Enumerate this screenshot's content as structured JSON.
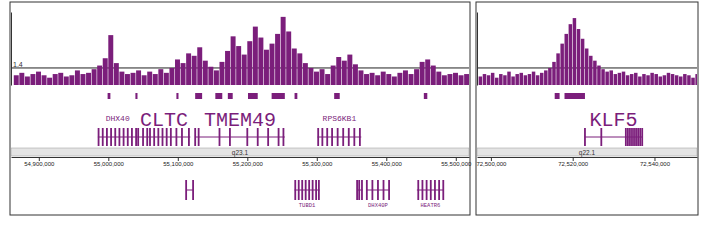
{
  "chart_data": [
    {
      "type": "bar",
      "color": "#7b1e7b",
      "band": "q23.1",
      "grid": true,
      "xlim": [
        54860000,
        55519000
      ],
      "xticks": [
        {
          "value": 54900000,
          "label": "54,900,000"
        },
        {
          "value": 55000000,
          "label": "55,000,000"
        },
        {
          "value": 55100000,
          "label": "55,100,000"
        },
        {
          "value": 55200000,
          "label": "55,200,000"
        },
        {
          "value": 55300000,
          "label": "55,300,000"
        },
        {
          "value": 55400000,
          "label": "55,400,000"
        },
        {
          "value": 55500000,
          "label": "55,500,000"
        }
      ],
      "ylim": [
        0,
        6
      ],
      "yticks": [
        {
          "value": 1.4,
          "label": "1.4"
        }
      ],
      "x": [
        54864000,
        54872000,
        54880000,
        54888000,
        54896000,
        54904000,
        54912000,
        54920000,
        54928000,
        54936000,
        54944000,
        54952000,
        54960000,
        54968000,
        54976000,
        54984000,
        54992000,
        55000000,
        55008000,
        55016000,
        55024000,
        55032000,
        55040000,
        55048000,
        55056000,
        55064000,
        55072000,
        55080000,
        55088000,
        55096000,
        55104000,
        55112000,
        55120000,
        55128000,
        55136000,
        55144000,
        55152000,
        55160000,
        55168000,
        55176000,
        55184000,
        55192000,
        55200000,
        55208000,
        55216000,
        55224000,
        55232000,
        55240000,
        55248000,
        55256000,
        55264000,
        55272000,
        55280000,
        55288000,
        55296000,
        55304000,
        55312000,
        55320000,
        55328000,
        55336000,
        55344000,
        55352000,
        55360000,
        55368000,
        55376000,
        55384000,
        55392000,
        55400000,
        55408000,
        55416000,
        55424000,
        55432000,
        55440000,
        55448000,
        55456000,
        55464000,
        55472000,
        55480000,
        55488000,
        55496000,
        55504000,
        55512000
      ],
      "values": [
        0.8,
        1.0,
        0.7,
        0.9,
        1.1,
        0.8,
        0.6,
        0.9,
        1.0,
        0.7,
        0.8,
        1.2,
        0.9,
        1.0,
        1.3,
        1.6,
        2.2,
        4.1,
        1.8,
        1.1,
        0.9,
        1.0,
        1.2,
        0.8,
        1.1,
        0.9,
        1.3,
        1.0,
        1.4,
        2.1,
        1.8,
        2.6,
        2.4,
        3.1,
        2.0,
        1.5,
        1.2,
        1.9,
        2.8,
        4.0,
        3.2,
        2.5,
        3.6,
        4.8,
        3.9,
        2.9,
        3.4,
        4.2,
        5.6,
        4.4,
        3.0,
        2.6,
        1.8,
        1.4,
        1.1,
        1.3,
        0.9,
        1.6,
        2.3,
        2.0,
        2.5,
        1.7,
        1.2,
        0.9,
        1.0,
        0.8,
        1.1,
        0.9,
        0.7,
        1.0,
        1.2,
        0.9,
        1.3,
        1.9,
        2.1,
        1.6,
        1.1,
        0.8,
        0.9,
        1.0,
        0.8,
        0.9
      ],
      "peaks": [
        [
          54999000,
          55003000
        ],
        [
          55039000,
          55042000
        ],
        [
          55098000,
          55101000
        ],
        [
          55125000,
          55135000
        ],
        [
          55154000,
          55164000
        ],
        [
          55172000,
          55179000
        ],
        [
          55201000,
          55215000
        ],
        [
          55235000,
          55254000
        ],
        [
          55268000,
          55272000
        ],
        [
          55325000,
          55333000
        ],
        [
          55454000,
          55459000
        ]
      ],
      "genes": [
        {
          "name": "DHX40",
          "start": 54985000,
          "end": 55042000,
          "exons": [
            54986000,
            54992000,
            54998000,
            55004000,
            55010000,
            55016000,
            55022000,
            55028000,
            55034000,
            55040000
          ]
        },
        {
          "name": "CLTC",
          "emphasis": true,
          "start": 55042000,
          "end": 55118000,
          "exons": [
            55043000,
            55050000,
            55056000,
            55060000,
            55066000,
            55072000,
            55078000,
            55084000,
            55090000,
            55098000,
            55106000,
            55116000
          ]
        },
        {
          "name": "TMEM49",
          "emphasis": true,
          "start": 55125000,
          "end": 55254000,
          "exons": [
            55125000,
            55130000,
            55160000,
            55175000,
            55200000,
            55215000,
            55230000,
            55245000,
            55252000
          ]
        },
        {
          "name": "RPS6KB1",
          "start": 55301000,
          "end": 55364000,
          "exons": [
            55302000,
            55308000,
            55315000,
            55322000,
            55330000,
            55338000,
            55346000,
            55354000,
            55362000
          ]
        }
      ],
      "lower_genes": [
        {
          "start": 55112000,
          "end": 55122000,
          "exons": [
            55112000,
            55122000
          ]
        },
        {
          "name": "TUBD1",
          "start": 55268000,
          "end": 55304000,
          "exons": [
            55269000,
            55274000,
            55279000,
            55284000,
            55289000,
            55294000,
            55299000,
            55303000
          ]
        },
        {
          "start": 55358000,
          "end": 55366000,
          "exons": [
            55358000,
            55361000,
            55365000
          ]
        },
        {
          "name": "DHX40P",
          "start": 55371000,
          "end": 55405000,
          "exons": [
            55372000,
            55380000,
            55388000,
            55396000,
            55404000
          ]
        },
        {
          "name": "HEATR6",
          "start": 55444000,
          "end": 55483000,
          "exons": [
            55446000,
            55452000,
            55458000,
            55464000,
            55470000,
            55476000,
            55482000
          ]
        }
      ]
    },
    {
      "type": "bar",
      "color": "#7b1e7b",
      "band": "q22.1",
      "grid": true,
      "tick_labels": "x",
      "xlim": [
        72496600,
        72550400
      ],
      "xticks": [
        {
          "value": 72500000,
          "label": "72,500,000"
        },
        {
          "value": 72520000,
          "label": "72,520,000"
        },
        {
          "value": 72540000,
          "label": "72,540,000"
        }
      ],
      "ylim": [
        0,
        6
      ],
      "yticks": [
        {
          "value": 1.4,
          "label": "1.4"
        }
      ],
      "x": [
        72497000,
        72498000,
        72499000,
        72500000,
        72501000,
        72502000,
        72503000,
        72504000,
        72505000,
        72506000,
        72507000,
        72508000,
        72509000,
        72510000,
        72511000,
        72512000,
        72513000,
        72514000,
        72515000,
        72516000,
        72517000,
        72518000,
        72519000,
        72520000,
        72521000,
        72522000,
        72523000,
        72524000,
        72525000,
        72526000,
        72527000,
        72528000,
        72529000,
        72530000,
        72531000,
        72532000,
        72533000,
        72534000,
        72535000,
        72536000,
        72537000,
        72538000,
        72539000,
        72540000,
        72541000,
        72542000,
        72543000,
        72544000,
        72545000,
        72546000,
        72547000,
        72548000,
        72549000,
        72550000
      ],
      "values": [
        0.7,
        0.9,
        0.8,
        1.0,
        0.6,
        0.9,
        0.8,
        1.1,
        0.7,
        0.9,
        1.0,
        0.8,
        0.9,
        1.1,
        0.8,
        1.0,
        1.2,
        1.4,
        1.9,
        2.6,
        3.4,
        4.2,
        5.0,
        5.5,
        4.6,
        3.8,
        3.0,
        2.4,
        2.0,
        1.6,
        1.3,
        1.1,
        1.2,
        0.9,
        1.0,
        1.1,
        0.8,
        0.9,
        1.0,
        0.7,
        0.9,
        0.8,
        1.0,
        0.9,
        0.7,
        0.8,
        1.0,
        0.9,
        0.8,
        0.7,
        0.9,
        0.8,
        0.6,
        0.9
      ],
      "peaks": [
        [
          72515600,
          72516800
        ],
        [
          72518000,
          72523000
        ]
      ],
      "genes": [
        {
          "name": "KLF5",
          "emphasis": true,
          "start": 72523000,
          "end": 72537000,
          "exons": [
            72523000,
            72527000,
            72533000,
            72533500,
            72534000,
            72534500,
            72535000,
            72535500,
            72536000,
            72536500,
            72537000
          ]
        }
      ]
    }
  ]
}
